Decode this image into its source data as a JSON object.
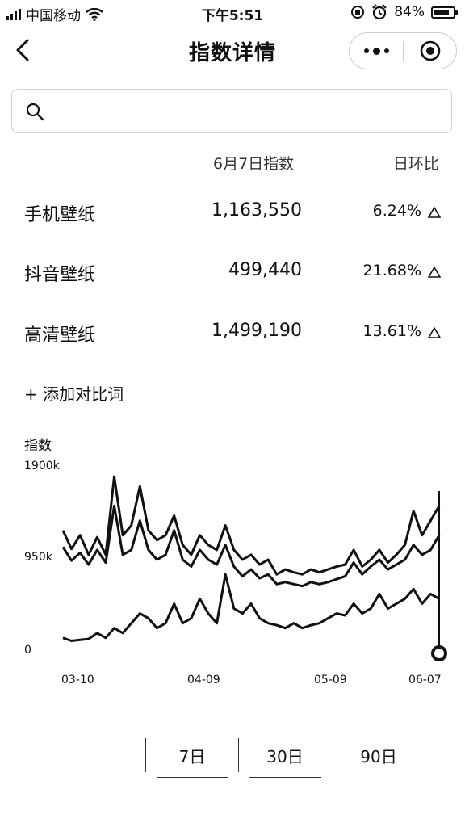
{
  "status": {
    "carrier": "中国移动",
    "time": "下午5:51",
    "battery": "84%",
    "battery_level": 0.84
  },
  "nav": {
    "title": "指数详情",
    "back_icon": "chevron-left-icon",
    "more_icon": "more-dots-icon",
    "close_icon": "target-close-icon"
  },
  "search": {
    "value": ""
  },
  "table": {
    "headers": [
      "6月7日指数",
      "日环比"
    ],
    "rows": [
      {
        "name": "手机壁纸",
        "value": "1,163,550",
        "change": "6.24%"
      },
      {
        "name": "抖音壁纸",
        "value": "499,440",
        "change": "21.68%"
      },
      {
        "name": "高清壁纸",
        "value": "1,499,190",
        "change": "13.61%"
      }
    ]
  },
  "add_compare": "+ 添加对比词",
  "chart_data": {
    "type": "line",
    "ylabel": "指数",
    "yticks": [
      "1900k",
      "950k",
      "0"
    ],
    "xticks": [
      "03-10",
      "04-09",
      "05-09",
      "06-07"
    ],
    "ylim": [
      0,
      1900000
    ],
    "x": [
      "03-10",
      "03-12",
      "03-14",
      "03-16",
      "03-18",
      "03-20",
      "03-22",
      "03-24",
      "03-26",
      "03-28",
      "03-30",
      "04-01",
      "04-03",
      "04-05",
      "04-07",
      "04-09",
      "04-11",
      "04-13",
      "04-15",
      "04-17",
      "04-19",
      "04-21",
      "04-23",
      "04-25",
      "04-27",
      "04-29",
      "05-01",
      "05-03",
      "05-05",
      "05-07",
      "05-09",
      "05-11",
      "05-13",
      "05-15",
      "05-17",
      "05-19",
      "05-21",
      "05-23",
      "05-25",
      "05-27",
      "05-29",
      "05-31",
      "06-02",
      "06-04",
      "06-07"
    ],
    "series": [
      {
        "values": [
          1250000,
          1060000,
          1200000,
          1000000,
          1180000,
          1000000,
          1800000,
          1200000,
          1300000,
          1700000,
          1250000,
          1150000,
          1200000,
          1400000,
          1100000,
          1000000,
          1200000,
          1100000,
          1050000,
          1300000,
          1050000,
          950000,
          1000000,
          900000,
          950000,
          800000,
          850000,
          820000,
          800000,
          850000,
          820000,
          850000,
          880000,
          900000,
          1050000,
          880000,
          950000,
          1050000,
          920000,
          1000000,
          1100000,
          1450000,
          1200000,
          1350000,
          1500000
        ]
      },
      {
        "values": [
          1080000,
          940000,
          1020000,
          900000,
          1050000,
          920000,
          1500000,
          1000000,
          1050000,
          1350000,
          1050000,
          950000,
          1000000,
          1250000,
          950000,
          880000,
          1050000,
          950000,
          900000,
          1100000,
          880000,
          780000,
          850000,
          760000,
          800000,
          700000,
          720000,
          700000,
          680000,
          720000,
          700000,
          720000,
          750000,
          780000,
          920000,
          800000,
          880000,
          950000,
          850000,
          900000,
          950000,
          1100000,
          1000000,
          1050000,
          1200000
        ]
      },
      {
        "values": [
          150000,
          120000,
          130000,
          140000,
          200000,
          150000,
          250000,
          200000,
          300000,
          400000,
          350000,
          250000,
          300000,
          500000,
          300000,
          350000,
          550000,
          400000,
          300000,
          800000,
          450000,
          400000,
          500000,
          350000,
          300000,
          280000,
          250000,
          300000,
          250000,
          280000,
          300000,
          350000,
          400000,
          380000,
          500000,
          400000,
          450000,
          600000,
          450000,
          500000,
          550000,
          650000,
          500000,
          600000,
          550000
        ]
      }
    ],
    "cursor_x": "06-07"
  },
  "range_tabs": [
    "",
    "7日",
    "30日",
    "90日"
  ]
}
